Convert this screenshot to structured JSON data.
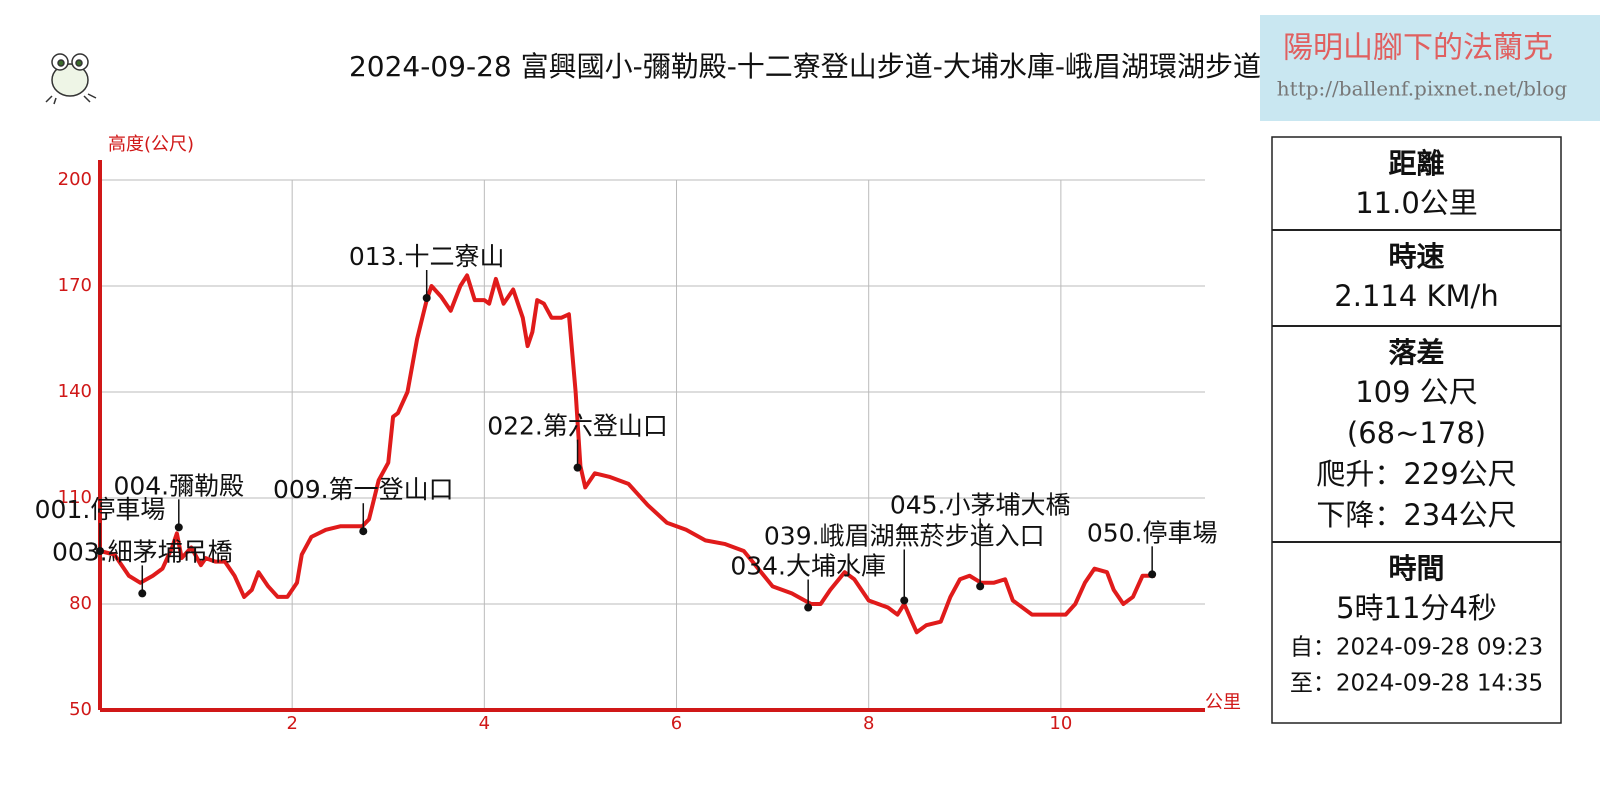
{
  "chart_data": {
    "type": "line",
    "title": "2024-09-28 富興國小-彌勒殿-十二寮登山步道-大埔水庫-峨眉湖環湖步道",
    "y_label": "高度(公尺)",
    "x_label": "公里",
    "xlim": [
      0,
      11.5
    ],
    "ylim": [
      50,
      200
    ],
    "xticks": [
      2,
      4,
      6,
      8,
      10
    ],
    "yticks": [
      50,
      80,
      110,
      140,
      170,
      200
    ],
    "grid": true,
    "x": [
      0,
      0.15,
      0.3,
      0.42,
      0.55,
      0.65,
      0.75,
      0.8,
      0.85,
      0.95,
      1.05,
      1.1,
      1.2,
      1.3,
      1.4,
      1.5,
      1.58,
      1.65,
      1.75,
      1.85,
      1.95,
      2.05,
      2.1,
      2.2,
      2.35,
      2.5,
      2.6,
      2.73,
      2.8,
      2.9,
      3.0,
      3.05,
      3.1,
      3.2,
      3.3,
      3.4,
      3.45,
      3.55,
      3.65,
      3.75,
      3.82,
      3.9,
      4.0,
      4.05,
      4.12,
      4.2,
      4.3,
      4.4,
      4.45,
      4.5,
      4.55,
      4.62,
      4.7,
      4.8,
      4.88,
      4.95,
      5.0,
      5.05,
      5.15,
      5.3,
      5.5,
      5.7,
      5.9,
      6.1,
      6.3,
      6.5,
      6.7,
      6.85,
      7.0,
      7.2,
      7.4,
      7.5,
      7.6,
      7.75,
      7.85,
      8.0,
      8.2,
      8.3,
      8.37,
      8.45,
      8.5,
      8.6,
      8.75,
      8.85,
      8.95,
      9.05,
      9.17,
      9.3,
      9.42,
      9.5,
      9.7,
      9.9,
      10.05,
      10.15,
      10.25,
      10.35,
      10.48,
      10.55,
      10.65,
      10.75,
      10.85,
      10.98
    ],
    "series": [
      {
        "name": "高度",
        "color": "#e01b1b",
        "values": [
          95,
          94,
          88,
          86,
          88,
          90,
          96,
          100,
          93,
          96,
          91,
          93,
          92,
          92,
          88,
          82,
          84,
          89,
          85,
          82,
          82,
          86,
          94,
          99,
          101,
          102,
          102,
          102,
          104,
          115,
          120,
          133,
          134,
          140,
          155,
          166,
          170,
          167,
          163,
          170,
          173,
          166,
          166,
          165,
          172,
          165,
          169,
          161,
          153,
          157,
          166,
          165,
          161,
          161,
          162,
          140,
          119,
          113,
          117,
          116,
          114,
          108,
          103,
          101,
          98,
          97,
          95,
          90,
          85,
          83,
          80,
          80,
          84,
          89,
          87,
          81,
          79,
          77,
          80,
          75,
          72,
          74,
          75,
          82,
          87,
          88,
          86,
          86,
          87,
          81,
          77,
          77,
          77,
          80,
          86,
          90,
          89,
          84,
          80,
          82,
          88,
          88
        ]
      }
    ],
    "annotations": [
      {
        "label": "001.停車場",
        "x": 0,
        "y": 95
      },
      {
        "label": "003.細茅埔吊橋",
        "x": 0.44,
        "y": 83
      },
      {
        "label": "004.彌勒殿",
        "x": 0.82,
        "y": 101.7
      },
      {
        "label": "009.第一登山口",
        "x": 2.74,
        "y": 100.6
      },
      {
        "label": "013.十二寮山",
        "x": 3.4,
        "y": 166.6
      },
      {
        "label": "022.第六登山口",
        "x": 4.97,
        "y": 118.6
      },
      {
        "label": "034.大埔水庫",
        "x": 7.37,
        "y": 79
      },
      {
        "label": "039.峨眉湖無菸步道入口",
        "x": 8.37,
        "y": 81
      },
      {
        "label": "045.小茅埔大橋",
        "x": 9.16,
        "y": 85
      },
      {
        "label": "050.停車場",
        "x": 10.95,
        "y": 88.4
      }
    ]
  },
  "watermark": {
    "name": "陽明山腳下的法蘭克",
    "url": "http://ballenf.pixnet.net/blog"
  },
  "stats": [
    {
      "label": "距離",
      "lines": [
        "11.0公里"
      ]
    },
    {
      "label": "時速",
      "lines": [
        "2.114 KM/h"
      ]
    },
    {
      "label": "落差",
      "lines": [
        "109 公尺",
        "(68~178)",
        "爬升：229公尺",
        "下降：234公尺"
      ]
    },
    {
      "label": "時間",
      "lines": [
        "5時11分4秒",
        "自：2024-09-28 09:23",
        "至：2024-09-28 14:35"
      ]
    }
  ]
}
